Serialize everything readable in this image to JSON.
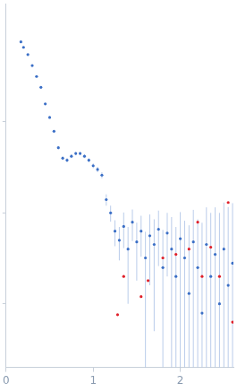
{
  "chart_data": {
    "type": "scatter",
    "log": "y",
    "grid": false,
    "tick_labels": "x",
    "xlim": [
      0,
      2.61
    ],
    "xticks": [
      0,
      1,
      2
    ],
    "ylim": [
      0.002,
      20
    ],
    "yticks": [
      0.01,
      0.1,
      1
    ],
    "series": [
      {
        "color": "#3b6fc6",
        "marker": "circle",
        "x": [
          0.17,
          0.2,
          0.25,
          0.3,
          0.35,
          0.4,
          0.45,
          0.5,
          0.55,
          0.6,
          0.65,
          0.7,
          0.75,
          0.8,
          0.85,
          0.9,
          0.95,
          1.0,
          1.05,
          1.1,
          1.15,
          1.2,
          1.25,
          1.3,
          1.35,
          1.4,
          1.45,
          1.5,
          1.55,
          1.6,
          1.65,
          1.7,
          1.75,
          1.8,
          1.85,
          1.9,
          1.95,
          2.0,
          2.05,
          2.1,
          2.15,
          2.2,
          2.25,
          2.3,
          2.35,
          2.4,
          2.45,
          2.5,
          2.55,
          2.6
        ],
        "values": [
          7.59,
          6.61,
          5.5,
          4.17,
          3.16,
          2.4,
          1.58,
          1.12,
          0.79,
          0.52,
          0.4,
          0.38,
          0.42,
          0.45,
          0.45,
          0.42,
          0.38,
          0.33,
          0.3,
          0.26,
          0.14,
          0.1,
          0.063,
          0.05,
          0.071,
          0.04,
          0.079,
          0.048,
          0.063,
          0.032,
          0.056,
          0.045,
          0.066,
          0.025,
          0.06,
          0.04,
          0.02,
          0.052,
          0.032,
          0.013,
          0.048,
          0.025,
          0.0079,
          0.045,
          0.02,
          0.035,
          0.01,
          0.04,
          0.016,
          0.028
        ],
        "errors": [
          0.1,
          0.09,
          0.08,
          0.06,
          0.05,
          0.04,
          0.03,
          0.03,
          0.02,
          0.02,
          0.02,
          0.02,
          0.02,
          0.02,
          0.02,
          0.02,
          0.02,
          0.02,
          0.02,
          0.02,
          0.02,
          0.02,
          0.02,
          0.02,
          0.03,
          0.03,
          0.03,
          0.03,
          0.03,
          0.03,
          0.04,
          0.04,
          0.04,
          0.04,
          0.04,
          0.05,
          0.05,
          0.05,
          0.05,
          0.06,
          0.06,
          0.06,
          0.07,
          0.07,
          0.08,
          0.08,
          0.09,
          0.09,
          0.1,
          0.1
        ]
      },
      {
        "color": "#e0202a",
        "marker": "circle",
        "x": [
          1.28,
          1.35,
          1.55,
          1.63,
          1.8,
          1.95,
          2.1,
          2.2,
          2.25,
          2.35,
          2.45,
          2.55,
          2.6
        ],
        "values": [
          0.0076,
          0.02,
          0.012,
          0.018,
          0.032,
          0.035,
          0.04,
          0.079,
          0.02,
          0.042,
          0.02,
          0.13,
          0.0063
        ]
      }
    ]
  }
}
